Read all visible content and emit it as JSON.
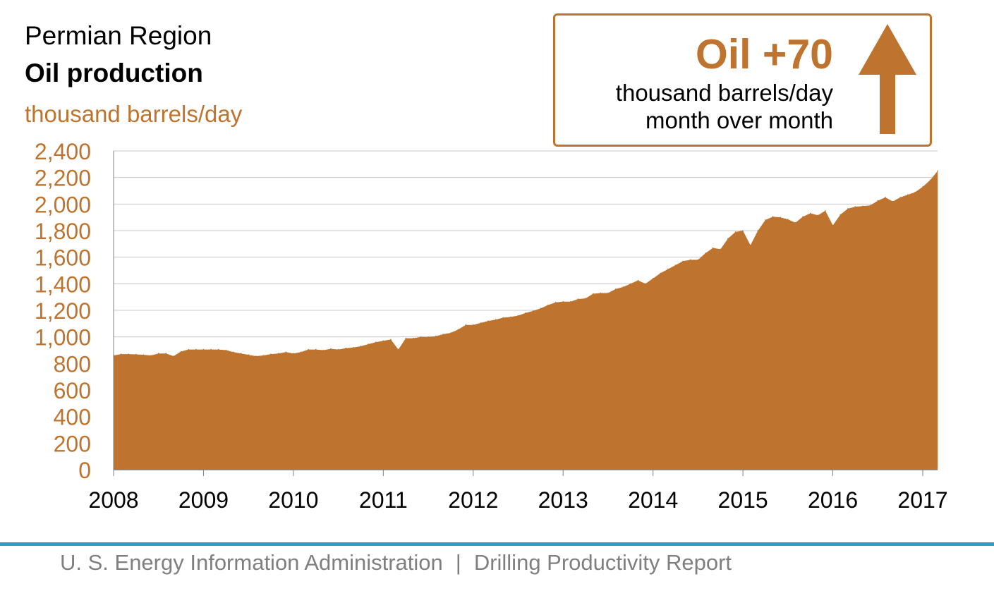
{
  "header": {
    "region": "Permian Region",
    "title": "Oil production",
    "unit": "thousand barrels/day"
  },
  "callout": {
    "headline": "Oil +70",
    "line1": "thousand barrels/day",
    "line2": "month over month",
    "icon": "up-arrow-icon"
  },
  "footer": {
    "org": "U. S. Energy Information Administration",
    "separator": "|",
    "report": "Drilling Productivity Report"
  },
  "colors": {
    "accent": "#BE742E",
    "footer_rule": "#2E9AD0",
    "footer_text": "#7F7F7F",
    "grid": "#C8C8C8"
  },
  "chart_data": {
    "type": "area",
    "title": "Oil production",
    "ylabel": "thousand barrels/day",
    "xlabel": "",
    "ylim": [
      0,
      2400
    ],
    "yticks": [
      0,
      200,
      400,
      600,
      800,
      1000,
      1200,
      1400,
      1600,
      1800,
      2000,
      2200,
      2400
    ],
    "ytick_labels": [
      "0",
      "200",
      "400",
      "600",
      "800",
      "1,000",
      "1,200",
      "1,400",
      "1,600",
      "1,800",
      "2,000",
      "2,200",
      "2,400"
    ],
    "xlim": [
      "2008-01",
      "2017-03"
    ],
    "xtick_labels": [
      "2008",
      "2009",
      "2010",
      "2011",
      "2012",
      "2013",
      "2014",
      "2015",
      "2016",
      "2017"
    ],
    "grid": "horizontal",
    "series": [
      {
        "x": [
          "2008-01",
          "2008-02",
          "2008-03",
          "2008-04",
          "2008-05",
          "2008-06",
          "2008-07",
          "2008-08",
          "2008-09",
          "2008-10",
          "2008-11",
          "2008-12",
          "2009-01",
          "2009-02",
          "2009-03",
          "2009-04",
          "2009-05",
          "2009-06",
          "2009-07",
          "2009-08",
          "2009-09",
          "2009-10",
          "2009-11",
          "2009-12",
          "2010-01",
          "2010-02",
          "2010-03",
          "2010-04",
          "2010-05",
          "2010-06",
          "2010-07",
          "2010-08",
          "2010-09",
          "2010-10",
          "2010-11",
          "2010-12",
          "2011-01",
          "2011-02",
          "2011-03",
          "2011-04",
          "2011-05",
          "2011-06",
          "2011-07",
          "2011-08",
          "2011-09",
          "2011-10",
          "2011-11",
          "2011-12",
          "2012-01",
          "2012-02",
          "2012-03",
          "2012-04",
          "2012-05",
          "2012-06",
          "2012-07",
          "2012-08",
          "2012-09",
          "2012-10",
          "2012-11",
          "2012-12",
          "2013-01",
          "2013-02",
          "2013-03",
          "2013-04",
          "2013-05",
          "2013-06",
          "2013-07",
          "2013-08",
          "2013-09",
          "2013-10",
          "2013-11",
          "2013-12",
          "2014-01",
          "2014-02",
          "2014-03",
          "2014-04",
          "2014-05",
          "2014-06",
          "2014-07",
          "2014-08",
          "2014-09",
          "2014-10",
          "2014-11",
          "2014-12",
          "2015-01",
          "2015-02",
          "2015-03",
          "2015-04",
          "2015-05",
          "2015-06",
          "2015-07",
          "2015-08",
          "2015-09",
          "2015-10",
          "2015-11",
          "2015-12",
          "2016-01",
          "2016-02",
          "2016-03",
          "2016-04",
          "2016-05",
          "2016-06",
          "2016-07",
          "2016-08",
          "2016-09",
          "2016-10",
          "2016-11",
          "2016-12",
          "2017-01",
          "2017-02",
          "2017-03"
        ],
        "values": [
          860,
          870,
          870,
          868,
          865,
          860,
          875,
          875,
          855,
          890,
          905,
          905,
          905,
          905,
          905,
          900,
          885,
          875,
          865,
          855,
          860,
          870,
          875,
          885,
          875,
          885,
          905,
          905,
          900,
          910,
          905,
          915,
          920,
          930,
          945,
          960,
          970,
          980,
          905,
          990,
          990,
          1000,
          1000,
          1005,
          1020,
          1030,
          1055,
          1090,
          1090,
          1105,
          1120,
          1130,
          1145,
          1150,
          1160,
          1180,
          1195,
          1215,
          1240,
          1260,
          1265,
          1265,
          1285,
          1290,
          1325,
          1330,
          1330,
          1360,
          1375,
          1400,
          1425,
          1400,
          1440,
          1480,
          1510,
          1540,
          1570,
          1580,
          1580,
          1630,
          1670,
          1660,
          1740,
          1790,
          1800,
          1690,
          1800,
          1880,
          1905,
          1900,
          1885,
          1860,
          1905,
          1930,
          1915,
          1950,
          1840,
          1920,
          1965,
          1980,
          1985,
          1990,
          2025,
          2050,
          2020,
          2050,
          2070,
          2090,
          2130,
          2180,
          2250
        ]
      }
    ]
  }
}
